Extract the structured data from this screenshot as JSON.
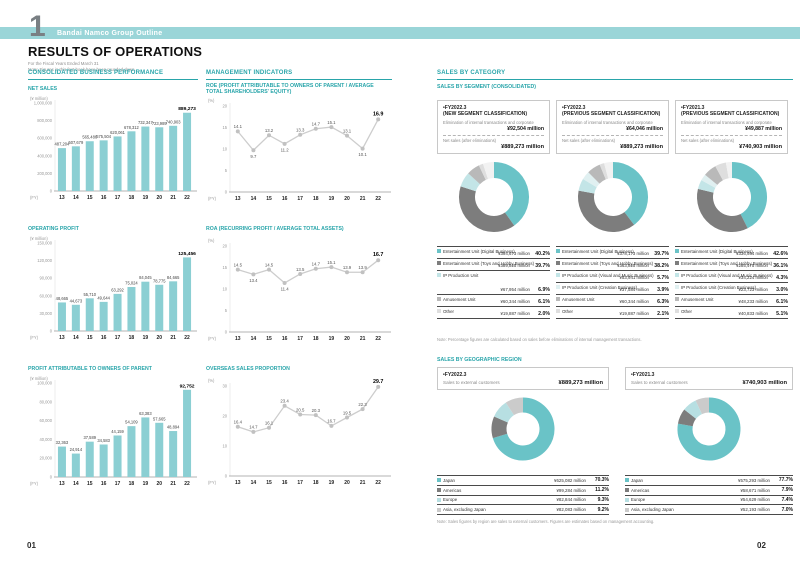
{
  "page": {
    "chapter_number": "1",
    "banner_title": "Bandai Namco Group Outline",
    "title": "RESULTS OF OPERATIONS",
    "subtitle_line1": "For the Fiscal Years Ended March 31",
    "subtitle_line2": "Note: Figures in this fact book have been rounded down.",
    "page_number_left": "01",
    "page_number_right": "02"
  },
  "headings": {
    "performance": "CONSOLIDATED BUSINESS PERFORMANCE",
    "indicators": "MANAGEMENT INDICATORS",
    "category": "SALES BY CATEGORY",
    "segment": "SALES BY SEGMENT (CONSOLIDATED)",
    "geographic": "SALES BY GEOGRAPHIC REGION",
    "segment_note": "Note: Percentage figures are calculated based on sales before eliminations of internal management transactions.",
    "geographic_note": "Note: Sales figures by region are sales to external customers. Figures are estimates based on management accounting."
  },
  "colors": {
    "accent": "#29a5aa",
    "band": "#9ad5d8",
    "bar": "#8bcfd3",
    "line": "#cdcdcd",
    "marker": "#c1c1c1",
    "donut_teal": "#6ac3c7",
    "donut_gray": "#7d7d7d",
    "donut_pale_teal": "#c3e5e7",
    "donut_pale": "#e0f0f1",
    "donut_light_gray": "#b9b9b9",
    "donut_lighter_gray": "#dedede",
    "donut_filler": "#f2f2f2"
  },
  "chart_data": [
    {
      "id": "net_sales",
      "type": "bar",
      "title": "NET SALES",
      "unit": "(¥ million)",
      "fy_label": "(FY)",
      "categories": [
        "13",
        "14",
        "15",
        "16",
        "17",
        "18",
        "19",
        "20",
        "21",
        "22"
      ],
      "values": [
        487204,
        507679,
        565486,
        575504,
        620061,
        678312,
        732347,
        723989,
        740903,
        889273
      ],
      "value_labels": [
        "487,204",
        "507,679",
        "565,486",
        "575,504",
        "620,061",
        "678,312",
        "732,347",
        "723,989",
        "740,903",
        "889,273"
      ],
      "ylim": [
        0,
        1000000
      ],
      "ytick_values": [
        1000000,
        800000,
        600000,
        400000,
        200000,
        0
      ],
      "ytick_labels": [
        "1,000,000",
        "800,000",
        "600,000",
        "400,000",
        "200,000",
        "0"
      ],
      "bar_color": "#8bcfd3"
    },
    {
      "id": "operating_profit",
      "type": "bar",
      "title": "OPERATING PROFIT",
      "unit": "(¥ million)",
      "fy_label": "(FY)",
      "categories": [
        "13",
        "14",
        "15",
        "16",
        "17",
        "18",
        "19",
        "20",
        "21",
        "22"
      ],
      "values": [
        48665,
        44673,
        55710,
        49644,
        63292,
        75024,
        84045,
        78775,
        84665,
        125456
      ],
      "value_labels": [
        "48,665",
        "44,673",
        "55,710",
        "49,644",
        "63,292",
        "75,024",
        "84,045",
        "78,775",
        "84,665",
        "125,456"
      ],
      "ylim": [
        0,
        150000
      ],
      "ytick_values": [
        150000,
        120000,
        90000,
        60000,
        30000,
        0
      ],
      "ytick_labels": [
        "150,000",
        "120,000",
        "90,000",
        "60,000",
        "30,000",
        "0"
      ],
      "bar_color": "#8bcfd3"
    },
    {
      "id": "profit_parent",
      "type": "bar",
      "title": "PROFIT ATTRIBUTABLE TO OWNERS OF PARENT",
      "unit": "(¥ million)",
      "fy_label": "(FY)",
      "categories": [
        "13",
        "14",
        "15",
        "16",
        "17",
        "18",
        "19",
        "20",
        "21",
        "22"
      ],
      "values": [
        32363,
        24914,
        37589,
        34583,
        44159,
        54109,
        63383,
        57665,
        48894,
        92752
      ],
      "value_labels": [
        "32,363",
        "24,914",
        "37,589",
        "34,583",
        "44,159",
        "54,109",
        "63,383",
        "57,665",
        "48,894",
        "92,752"
      ],
      "ylim": [
        0,
        100000
      ],
      "ytick_values": [
        100000,
        80000,
        60000,
        40000,
        20000,
        0
      ],
      "ytick_labels": [
        "100,000",
        "80,000",
        "60,000",
        "40,000",
        "20,000",
        "0"
      ],
      "bar_color": "#8bcfd3"
    },
    {
      "id": "roe",
      "type": "line",
      "title": "ROE (PROFIT ATTRIBUTABLE TO OWNERS OF PARENT / AVERAGE TOTAL SHAREHOLDERS' EQUITY)",
      "unit": "(%)",
      "fy_label": "(FY)",
      "categories": [
        "13",
        "14",
        "15",
        "16",
        "17",
        "18",
        "19",
        "20",
        "21",
        "22"
      ],
      "values": [
        14.1,
        9.7,
        13.2,
        11.2,
        13.3,
        14.7,
        15.1,
        13.1,
        10.1,
        16.9
      ],
      "value_labels": [
        "14.1",
        "9.7",
        "13.2",
        "11.2",
        "13.3",
        "14.7",
        "15.1",
        "13.1",
        "10.1",
        "16.9"
      ],
      "label_below": [
        false,
        true,
        false,
        true,
        false,
        false,
        false,
        false,
        true,
        false
      ],
      "ylim": [
        0,
        20
      ],
      "ytick_values": [
        20,
        15,
        10,
        5,
        0
      ],
      "ytick_labels": [
        "20",
        "15",
        "10",
        "5",
        "0"
      ]
    },
    {
      "id": "roa",
      "type": "line",
      "title": "ROA (RECURRING PROFIT / AVERAGE TOTAL ASSETS)",
      "unit": "(%)",
      "fy_label": "(FY)",
      "categories": [
        "13",
        "14",
        "15",
        "16",
        "17",
        "18",
        "19",
        "20",
        "21",
        "22"
      ],
      "values": [
        14.5,
        13.4,
        14.5,
        11.4,
        13.5,
        14.7,
        15.1,
        13.9,
        13.9,
        16.7
      ],
      "value_labels": [
        "14.5",
        "13.4",
        "14.5",
        "11.4",
        "13.5",
        "14.7",
        "15.1",
        "13.9",
        "13.9",
        "16.7"
      ],
      "label_below": [
        false,
        true,
        false,
        true,
        false,
        false,
        false,
        false,
        false,
        false
      ],
      "ylim": [
        0,
        20
      ],
      "ytick_values": [
        20,
        15,
        10,
        5,
        0
      ],
      "ytick_labels": [
        "20",
        "15",
        "10",
        "5",
        "0"
      ]
    },
    {
      "id": "overseas",
      "type": "line",
      "title": "OVERSEAS SALES PROPORTION",
      "unit": "(%)",
      "fy_label": "(FY)",
      "categories": [
        "13",
        "14",
        "15",
        "16",
        "17",
        "18",
        "19",
        "20",
        "21",
        "22"
      ],
      "values": [
        16.4,
        14.7,
        16.1,
        23.4,
        20.5,
        20.3,
        16.7,
        19.5,
        22.3,
        29.7
      ],
      "value_labels": [
        "16.4",
        "14.7",
        "16.1",
        "23.4",
        "20.5",
        "20.3",
        "16.7",
        "19.5",
        "22.3",
        "29.7"
      ],
      "label_below": [
        false,
        false,
        false,
        false,
        false,
        false,
        false,
        false,
        false,
        false
      ],
      "ylim": [
        0,
        30
      ],
      "ytick_values": [
        30,
        20,
        10,
        0
      ],
      "ytick_labels": [
        "30",
        "20",
        "10",
        "0"
      ]
    },
    {
      "id": "segment_fy2022_new",
      "type": "segment-donut",
      "fy": "FY2022.3",
      "classification": "(NEW SEGMENT CLASSIFICATION)",
      "elimination_label": "Elimination of internal transactions and corporate",
      "elimination_value": "¥92,504 million",
      "net_label": "Net sales (after eliminations)",
      "net_value": "¥889,273 million",
      "filler_color": "#f2f2f2",
      "slices": [
        {
          "label": "Entertainment Unit (Digital Business)",
          "value": "¥394,673 million",
          "pct": "40.2%",
          "pct_num": 40.2,
          "color": "#6ac3c7",
          "span": 1
        },
        {
          "label": "Entertainment Unit (Toys and Hobby Business)",
          "value": "¥389,825 million",
          "pct": "39.7%",
          "pct_num": 39.7,
          "color": "#7d7d7d",
          "span": 1
        },
        {
          "label": "IP Production Unit",
          "value": "¥67,954 million",
          "pct": "6.9%",
          "pct_num": 6.9,
          "color": "#c3e5e7",
          "span": 2
        },
        {
          "label": "Amusement Unit",
          "value": "¥60,344 million",
          "pct": "6.1%",
          "pct_num": 6.1,
          "color": "#b9b9b9",
          "span": 1
        },
        {
          "label": "Other",
          "value": "¥19,887 million",
          "pct": "2.0%",
          "pct_num": 2.0,
          "color": "#dedede",
          "span": 1
        }
      ]
    },
    {
      "id": "segment_fy2022_prev",
      "type": "segment-donut",
      "fy": "FY2022.3",
      "classification": "(PREVIOUS SEGMENT CLASSIFICATION)",
      "elimination_label": "Elimination of internal transactions and corporate",
      "elimination_value": "¥64,046 million",
      "net_label": "Net sales (after eliminations)",
      "net_value": "¥889,273 million",
      "filler_color": "#f2f2f2",
      "slices": [
        {
          "label": "Entertainment Unit (Digital Business)",
          "value": "¥378,173 million",
          "pct": "39.7%",
          "pct_num": 39.7,
          "color": "#6ac3c7",
          "span": 1
        },
        {
          "label": "Entertainment Unit (Toys and Hobby Business)",
          "value": "¥363,825 million",
          "pct": "38.2%",
          "pct_num": 38.2,
          "color": "#7d7d7d",
          "span": 1
        },
        {
          "label": "IP Production Unit (Visual and Music Business)",
          "value": "¥53,941 million",
          "pct": "5.7%",
          "pct_num": 5.7,
          "color": "#c3e5e7",
          "span": 1
        },
        {
          "label": "IP Production Unit (Creation Business)",
          "value": "¥37,584 million",
          "pct": "3.9%",
          "pct_num": 3.9,
          "color": "#e0f0f1",
          "span": 1
        },
        {
          "label": "Amusement Unit",
          "value": "¥60,344 million",
          "pct": "6.3%",
          "pct_num": 6.3,
          "color": "#b9b9b9",
          "span": 1
        },
        {
          "label": "Other",
          "value": "¥19,887 million",
          "pct": "2.1%",
          "pct_num": 2.1,
          "color": "#dedede",
          "span": 1
        }
      ]
    },
    {
      "id": "segment_fy2021_prev",
      "type": "segment-donut",
      "fy": "FY2021.3",
      "classification": "(PREVIOUS SEGMENT CLASSIFICATION)",
      "elimination_label": "Elimination of internal transactions and corporate",
      "elimination_value": "¥49,887 million",
      "net_label": "Net sales (after eliminations)",
      "net_value": "¥740,903 million",
      "filler_color": "#f2f2f2",
      "slices": [
        {
          "label": "Entertainment Unit (Digital Business)",
          "value": "¥336,984 million",
          "pct": "42.6%",
          "pct_num": 42.6,
          "color": "#6ac3c7",
          "span": 1
        },
        {
          "label": "Entertainment Unit (Toys and Hobby Business)",
          "value": "¥285,475 million",
          "pct": "36.1%",
          "pct_num": 36.1,
          "color": "#7d7d7d",
          "span": 1
        },
        {
          "label": "IP Production Unit (Visual and Music Business)",
          "value": "¥34,224 million",
          "pct": "4.3%",
          "pct_num": 4.3,
          "color": "#c3e5e7",
          "span": 1
        },
        {
          "label": "IP Production Unit (Creation Business)",
          "value": "¥23,723 million",
          "pct": "3.0%",
          "pct_num": 3.0,
          "color": "#e0f0f1",
          "span": 1
        },
        {
          "label": "Amusement Unit",
          "value": "¥48,233 million",
          "pct": "6.1%",
          "pct_num": 6.1,
          "color": "#b9b9b9",
          "span": 1
        },
        {
          "label": "Other",
          "value": "¥40,833 million",
          "pct": "5.1%",
          "pct_num": 5.1,
          "color": "#dedede",
          "span": 1
        }
      ]
    },
    {
      "id": "geo_fy2022",
      "type": "geo-donut",
      "fy": "FY2022.3",
      "sales_label": "Sales to external customers",
      "sales_value": "¥889,273 million",
      "filler_color": "#f2f2f2",
      "slices": [
        {
          "label": "Japan",
          "value": "¥625,082 million",
          "pct": "70.3%",
          "pct_num": 70.3,
          "color": "#6ac3c7"
        },
        {
          "label": "Americas",
          "value": "¥99,284 million",
          "pct": "11.2%",
          "pct_num": 11.2,
          "color": "#7d7d7d"
        },
        {
          "label": "Europe",
          "value": "¥82,844 million",
          "pct": "9.3%",
          "pct_num": 9.3,
          "color": "#b7dfe2"
        },
        {
          "label": "Asia, excluding Japan",
          "value": "¥82,083 million",
          "pct": "9.2%",
          "pct_num": 9.2,
          "color": "#cbcbcb"
        }
      ]
    },
    {
      "id": "geo_fy2021",
      "type": "geo-donut",
      "fy": "FY2021.3",
      "sales_label": "Sales to external customers",
      "sales_value": "¥740,903 million",
      "filler_color": "#f2f2f2",
      "slices": [
        {
          "label": "Japan",
          "value": "¥575,293 million",
          "pct": "77.7%",
          "pct_num": 77.7,
          "color": "#6ac3c7"
        },
        {
          "label": "Americas",
          "value": "¥58,671 million",
          "pct": "7.9%",
          "pct_num": 7.9,
          "color": "#7d7d7d"
        },
        {
          "label": "Europe",
          "value": "¥54,629 million",
          "pct": "7.4%",
          "pct_num": 7.4,
          "color": "#b7dfe2"
        },
        {
          "label": "Asia, excluding Japan",
          "value": "¥52,193 million",
          "pct": "7.0%",
          "pct_num": 7.0,
          "color": "#cbcbcb"
        }
      ]
    }
  ]
}
